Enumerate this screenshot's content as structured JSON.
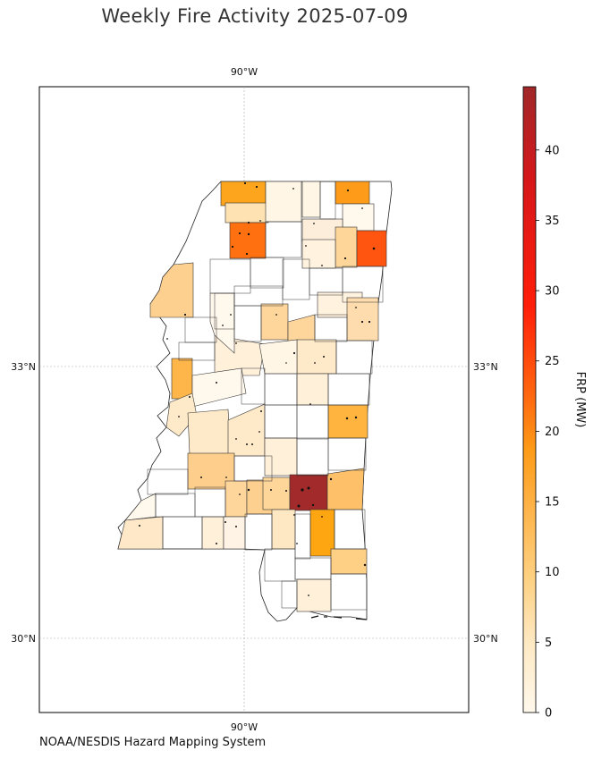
{
  "title": "Weekly Fire Activity 2025-07-09",
  "source": "NOAA/NESDIS Hazard Mapping System",
  "map": {
    "lon_label_top": "90°W",
    "lon_label_bottom": "90°W",
    "lat_labels": [
      {
        "label": "33°N",
        "lat": 33
      },
      {
        "label": "30°N",
        "lat": 30
      }
    ],
    "lon_range": [
      -92.6,
      -87.6
    ],
    "lat_range": [
      29.2,
      36.1
    ],
    "counties": [
      {
        "name": "tishomingo_area",
        "frp": 12.0
      },
      {
        "name": "north_center",
        "frp": 14.5
      },
      {
        "name": "north_1",
        "frp": 3.0
      },
      {
        "name": "north_2",
        "frp": 0.5
      },
      {
        "name": "northeast",
        "frp": 20.5
      },
      {
        "name": "marshall",
        "frp": 18.5
      },
      {
        "name": "ne_2",
        "frp": 4.0
      },
      {
        "name": "delta_west",
        "frp": 6.5
      },
      {
        "name": "delta_2",
        "frp": 9.0
      },
      {
        "name": "center_1",
        "frp": 5.5
      },
      {
        "name": "center_2",
        "frp": 6.0
      },
      {
        "name": "ne_3",
        "frp": 5.0
      },
      {
        "name": "east_mid",
        "frp": 9.5
      },
      {
        "name": "south_east",
        "frp": 44.5
      },
      {
        "name": "south_2",
        "frp": 13.0
      },
      {
        "name": "south_3",
        "frp": 7.0
      },
      {
        "name": "coast_east",
        "frp": 7.5
      },
      {
        "name": "southwest",
        "frp": 4.5
      },
      {
        "name": "south_center",
        "frp": 5.0
      }
    ]
  },
  "colorbar": {
    "label": "FRP (MW)",
    "min": 0,
    "max": 44.5,
    "ticks": [
      "0",
      "5",
      "10",
      "15",
      "20",
      "25",
      "30",
      "35",
      "40"
    ],
    "tick_values": [
      0,
      5,
      10,
      15,
      20,
      25,
      30,
      35,
      40
    ],
    "colormap": [
      "#fff8ec",
      "#fee9c4",
      "#fecf7f",
      "#feb247",
      "#fe9b18",
      "#ff6b10",
      "#ff1e0a",
      "#e1161a",
      "#a0282a"
    ]
  }
}
